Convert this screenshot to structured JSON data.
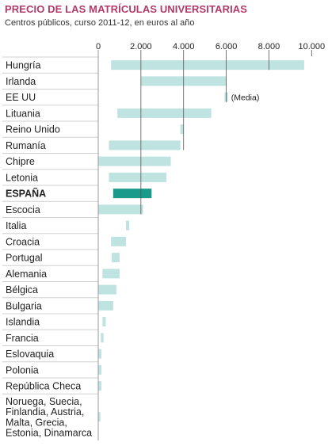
{
  "chart_data": {
    "type": "bar",
    "orientation": "horizontal",
    "floating": true,
    "title": "PRECIO DE LAS MATRÍCULAS UNIVERSITARIAS",
    "subtitle": "Centros públicos, curso 2011-12, en euros al año",
    "xlim": [
      0,
      10000
    ],
    "xticks": [
      0,
      2000,
      4000,
      6000,
      8000,
      10000
    ],
    "xtick_labels": [
      "0",
      "2.000",
      "4.000",
      "6.000",
      "8.000",
      "10.000"
    ],
    "highlight_category": "ESPAÑA",
    "colors": {
      "bar": "#bfe3e0",
      "highlight": "#1a9a8a",
      "title": "#b23a6a",
      "grid": "#555555"
    },
    "rows": [
      {
        "label": [
          "Hungría"
        ],
        "start": 600,
        "end": 9650
      },
      {
        "label": [
          "Irlanda"
        ],
        "start": 2000,
        "end": 6000
      },
      {
        "label": [
          "EE UU"
        ],
        "start": 5920,
        "end": 6080,
        "note": "(Media)"
      },
      {
        "label": [
          "Lituania"
        ],
        "start": 900,
        "end": 5300
      },
      {
        "label": [
          "Reino Unido"
        ],
        "start": 3850,
        "end": 4000
      },
      {
        "label": [
          "Rumanía"
        ],
        "start": 500,
        "end": 3850
      },
      {
        "label": [
          "Chipre"
        ],
        "start": 0,
        "end": 3400
      },
      {
        "label": [
          "Letonia"
        ],
        "start": 500,
        "end": 3200
      },
      {
        "label": [
          "ESPAÑA"
        ],
        "start": 700,
        "end": 2500
      },
      {
        "label": [
          "Escocia"
        ],
        "start": 0,
        "end": 2100
      },
      {
        "label": [
          "Italia"
        ],
        "start": 1300,
        "end": 1450
      },
      {
        "label": [
          "Croacia"
        ],
        "start": 600,
        "end": 1300
      },
      {
        "label": [
          "Portugal"
        ],
        "start": 630,
        "end": 1000
      },
      {
        "label": [
          "Alemania"
        ],
        "start": 200,
        "end": 1000
      },
      {
        "label": [
          "Bélgica"
        ],
        "start": 0,
        "end": 850
      },
      {
        "label": [
          "Bulgaria"
        ],
        "start": 0,
        "end": 700
      },
      {
        "label": [
          "Islandia"
        ],
        "start": 200,
        "end": 350
      },
      {
        "label": [
          "Francia"
        ],
        "start": 120,
        "end": 250
      },
      {
        "label": [
          "Eslovaquia"
        ],
        "start": 0,
        "end": 150
      },
      {
        "label": [
          "Polonia"
        ],
        "start": 0,
        "end": 150
      },
      {
        "label": [
          "República Checa"
        ],
        "start": 0,
        "end": 150
      },
      {
        "label": [
          "Noruega, Suecia,",
          "Finlandia, Austria,",
          "Malta, Grecia,",
          "Estonia, Dinamarca"
        ],
        "start": 0,
        "end": 100
      }
    ]
  }
}
